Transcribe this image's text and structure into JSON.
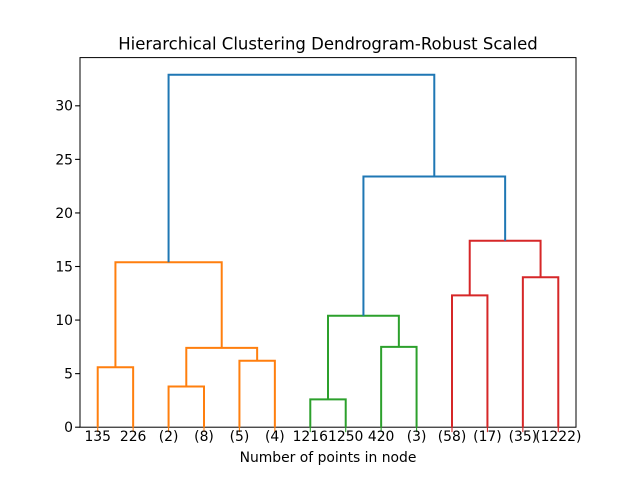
{
  "chart_data": {
    "type": "dendrogram",
    "title": "Hierarchical Clustering Dendrogram-Robust Scaled",
    "xlabel": "Number of points in node",
    "ylabel": "",
    "xlim": [
      0,
      140
    ],
    "ylim": [
      0,
      34.5
    ],
    "yticks": [
      0,
      5,
      10,
      15,
      20,
      25,
      30
    ],
    "grid": false,
    "legend": "none",
    "colors": {
      "above_threshold_link": "#1f77b4",
      "cluster_orange": "#ff7f0e",
      "cluster_green": "#2ca02c",
      "cluster_red": "#d62728",
      "axis": "#000000",
      "background": "#ffffff"
    },
    "leaves": [
      {
        "label": "135",
        "x": 5,
        "color": "#ff7f0e"
      },
      {
        "label": "226",
        "x": 15,
        "color": "#ff7f0e"
      },
      {
        "label": "(2)",
        "x": 25,
        "color": "#ff7f0e"
      },
      {
        "label": "(8)",
        "x": 35,
        "color": "#ff7f0e"
      },
      {
        "label": "(5)",
        "x": 45,
        "color": "#ff7f0e"
      },
      {
        "label": "(4)",
        "x": 55,
        "color": "#ff7f0e"
      },
      {
        "label": "1216",
        "x": 65,
        "color": "#2ca02c"
      },
      {
        "label": "1250",
        "x": 75,
        "color": "#2ca02c"
      },
      {
        "label": "420",
        "x": 85,
        "color": "#2ca02c"
      },
      {
        "label": "(3)",
        "x": 95,
        "color": "#2ca02c"
      },
      {
        "label": "(58)",
        "x": 105,
        "color": "#d62728"
      },
      {
        "label": "(17)",
        "x": 115,
        "color": "#d62728"
      },
      {
        "label": "(35)",
        "x": 125,
        "color": "#d62728"
      },
      {
        "label": "(1222)",
        "x": 135,
        "color": "#d62728"
      }
    ],
    "links": [
      {
        "name": "link-135-226",
        "x1": 5,
        "h1": 0,
        "x2": 15,
        "h2": 0,
        "height": 5.6,
        "color": "#ff7f0e"
      },
      {
        "name": "link-2-8",
        "x1": 25,
        "h1": 0,
        "x2": 35,
        "h2": 0,
        "height": 3.8,
        "color": "#ff7f0e"
      },
      {
        "name": "link-5-4",
        "x1": 45,
        "h1": 0,
        "x2": 55,
        "h2": 0,
        "height": 6.2,
        "color": "#ff7f0e"
      },
      {
        "name": "link-orange-sub",
        "x1": 30,
        "h1": 3.8,
        "x2": 50,
        "h2": 6.2,
        "height": 7.4,
        "color": "#ff7f0e"
      },
      {
        "name": "link-orange-root",
        "x1": 10,
        "h1": 5.6,
        "x2": 40,
        "h2": 7.4,
        "height": 15.4,
        "color": "#ff7f0e"
      },
      {
        "name": "link-1216-1250",
        "x1": 65,
        "h1": 0,
        "x2": 75,
        "h2": 0,
        "height": 2.6,
        "color": "#2ca02c"
      },
      {
        "name": "link-420-3",
        "x1": 85,
        "h1": 0,
        "x2": 95,
        "h2": 0,
        "height": 7.5,
        "color": "#2ca02c"
      },
      {
        "name": "link-green-root",
        "x1": 70,
        "h1": 2.6,
        "x2": 90,
        "h2": 7.5,
        "height": 10.4,
        "color": "#2ca02c"
      },
      {
        "name": "link-58-17",
        "x1": 105,
        "h1": 0,
        "x2": 115,
        "h2": 0,
        "height": 12.3,
        "color": "#d62728"
      },
      {
        "name": "link-35-1222",
        "x1": 125,
        "h1": 0,
        "x2": 135,
        "h2": 0,
        "height": 14.0,
        "color": "#d62728"
      },
      {
        "name": "link-red-root",
        "x1": 110,
        "h1": 12.3,
        "x2": 130,
        "h2": 14.0,
        "height": 17.4,
        "color": "#d62728"
      },
      {
        "name": "link-right-branch",
        "x1": 80,
        "h1": 10.4,
        "x2": 120,
        "h2": 17.4,
        "height": 23.4,
        "color": "#1f77b4"
      },
      {
        "name": "link-root",
        "x1": 25,
        "h1": 15.4,
        "x2": 100,
        "h2": 23.4,
        "height": 32.9,
        "color": "#1f77b4"
      }
    ]
  }
}
